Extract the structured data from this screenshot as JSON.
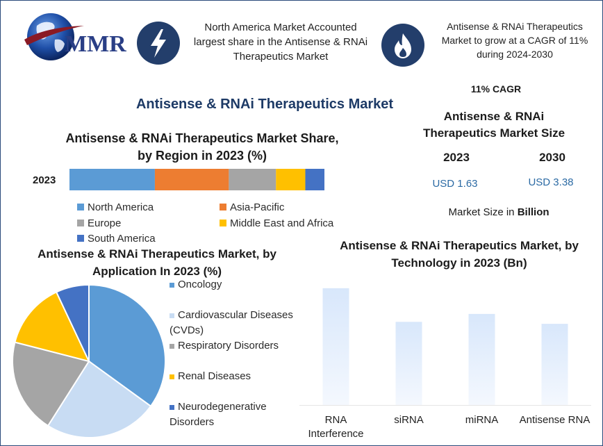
{
  "header": {
    "logo_text": "MMR",
    "highlight_1": "North America Market Accounted largest share in the Antisense & RNAi Therapeutics Market",
    "highlight_2": "Antisense & RNAi Therapeutics Market to grow at a CAGR of 11% during 2024-2030",
    "icon_1": "lightning-icon",
    "icon_2": "flame-icon"
  },
  "main_title": "Antisense & RNAi Therapeutics Market",
  "market_size": {
    "cagr": "11% CAGR",
    "title": "Antisense & RNAi Therapeutics Market Size",
    "year_a": "2023",
    "year_b": "2030",
    "value_a": "USD 1.63",
    "value_b": "USD 3.38",
    "unit_prefix": "Market Size in ",
    "unit_bold": "Billion"
  },
  "chart_data": [
    {
      "type": "bar",
      "orientation": "horizontal-stacked",
      "title": "Antisense & RNAi Therapeutics Market Share, by Region in 2023 (%)",
      "categories": [
        "2023"
      ],
      "series": [
        {
          "name": "North America",
          "values": [
            33.5
          ],
          "color": "#5b9bd5"
        },
        {
          "name": "Asia-Pacific",
          "values": [
            29
          ],
          "color": "#ed7d31"
        },
        {
          "name": "Europe",
          "values": [
            18.5
          ],
          "color": "#a5a5a5"
        },
        {
          "name": "Middle East and Africa",
          "values": [
            11.5
          ],
          "color": "#ffc000"
        },
        {
          "name": "South America",
          "values": [
            7.5
          ],
          "color": "#4472c4"
        }
      ],
      "legend": "bottom"
    },
    {
      "type": "pie",
      "title": "Antisense & RNAi Therapeutics Market, by Application In 2023 (%)",
      "series": [
        {
          "name": "Oncology",
          "value": 35,
          "color": "#5b9bd5"
        },
        {
          "name": "Cardiovascular Diseases (CVDs)",
          "value": 24,
          "color": "#c8dcf3"
        },
        {
          "name": "Respiratory Disorders",
          "value": 20,
          "color": "#a5a5a5"
        },
        {
          "name": "Renal Diseases",
          "value": 14,
          "color": "#ffc000"
        },
        {
          "name": "Neurodegenerative Disorders",
          "value": 7,
          "color": "#4472c4"
        }
      ],
      "legend": "right"
    },
    {
      "type": "bar",
      "title": "Antisense & RNAi Therapeutics Market, by Technology in 2023 (Bn)",
      "categories": [
        "RNA Interference",
        "siRNA",
        "miRNA",
        "Antisense RNA"
      ],
      "values": [
        0.59,
        0.42,
        0.46,
        0.41
      ],
      "color_top": "#d8e7fb",
      "color_bottom": "#f4f8fe",
      "ylim": [
        0,
        0.62
      ],
      "grid": false
    }
  ]
}
